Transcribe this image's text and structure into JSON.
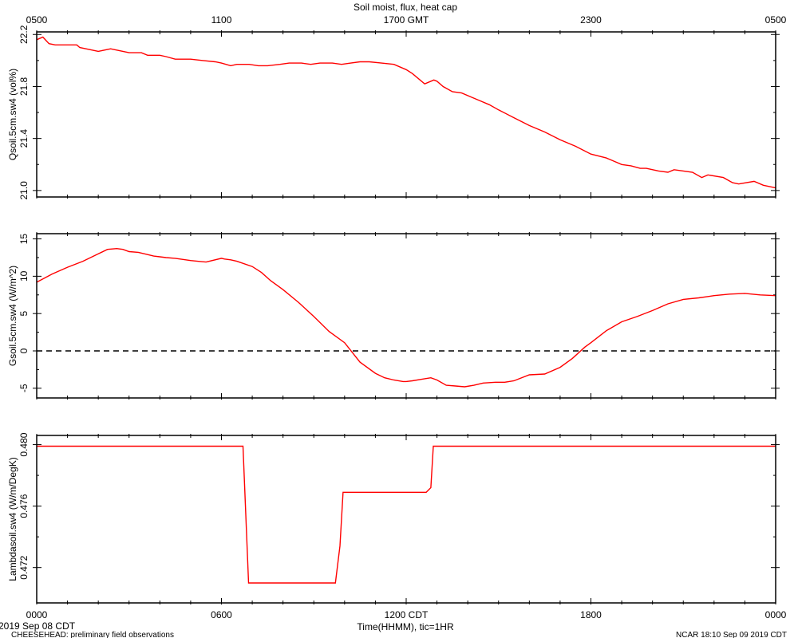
{
  "title": "Soil moist, flux, heat cap",
  "top_axis": {
    "ticks": [
      {
        "hours": 0,
        "label": "0500"
      },
      {
        "hours": 6,
        "label": "1100"
      },
      {
        "hours": 12,
        "label": "1700 GMT"
      },
      {
        "hours": 18,
        "label": "2300"
      },
      {
        "hours": 24,
        "label": "0500"
      }
    ]
  },
  "bottom_axis": {
    "ticks": [
      {
        "hours": 0,
        "label": "0000"
      },
      {
        "hours": 6,
        "label": "0600"
      },
      {
        "hours": 12,
        "label": "1200 CDT"
      },
      {
        "hours": 18,
        "label": "1800"
      },
      {
        "hours": 24,
        "label": "0000"
      }
    ],
    "xlabel": "Time(HHMM), tic=1HR"
  },
  "footer": {
    "date": "2019 Sep 08 CDT",
    "left": "CHEESEHEAD: preliminary field observations",
    "right": "NCAR 18:10 Sep 09 2019 CDT"
  },
  "colors": {
    "series": "#ff0000",
    "frame": "#000000",
    "zero_line": "#000000"
  },
  "chart_data": [
    {
      "type": "line",
      "name": "Qsoil.5cm.sw4",
      "ylabel": "Qsoil.5cm.sw4 (vol%)",
      "xlim": [
        0,
        24
      ],
      "ylim": [
        20.95,
        22.22
      ],
      "yticks": [
        {
          "value": 21.0,
          "label": "21.0"
        },
        {
          "value": 21.4,
          "label": "21.4"
        },
        {
          "value": 21.8,
          "label": "21.8"
        },
        {
          "value": 22.2,
          "label": "22.2"
        }
      ],
      "x": [
        0,
        0.2,
        0.4,
        0.6,
        0.9,
        1.3,
        1.4,
        1.8,
        2.0,
        2.4,
        2.6,
        3.0,
        3.4,
        3.6,
        3.8,
        4.0,
        4.2,
        4.5,
        4.8,
        5.0,
        5.4,
        5.8,
        6.0,
        6.3,
        6.5,
        6.9,
        7.2,
        7.5,
        7.9,
        8.2,
        8.6,
        8.9,
        9.2,
        9.6,
        9.9,
        10.2,
        10.5,
        10.8,
        11.2,
        11.6,
        12.0,
        12.2,
        12.6,
        12.9,
        13.0,
        13.2,
        13.5,
        13.8,
        14.1,
        14.4,
        14.7,
        15.0,
        15.5,
        16.0,
        16.5,
        17.0,
        17.5,
        18.0,
        18.5,
        18.8,
        19.0,
        19.3,
        19.6,
        19.8,
        20.2,
        20.5,
        20.7,
        21.0,
        21.3,
        21.6,
        21.8,
        22.3,
        22.6,
        22.8,
        23.3,
        23.6,
        24.0
      ],
      "y": [
        22.16,
        22.18,
        22.13,
        22.12,
        22.12,
        22.12,
        22.1,
        22.08,
        22.07,
        22.09,
        22.08,
        22.06,
        22.06,
        22.04,
        22.04,
        22.04,
        22.03,
        22.01,
        22.01,
        22.01,
        22.0,
        21.99,
        21.98,
        21.96,
        21.97,
        21.97,
        21.96,
        21.96,
        21.97,
        21.98,
        21.98,
        21.97,
        21.98,
        21.98,
        21.97,
        21.98,
        21.99,
        21.99,
        21.98,
        21.97,
        21.93,
        21.9,
        21.82,
        21.85,
        21.84,
        21.8,
        21.76,
        21.75,
        21.72,
        21.69,
        21.66,
        21.62,
        21.56,
        21.5,
        21.45,
        21.39,
        21.34,
        21.28,
        21.25,
        21.22,
        21.2,
        21.19,
        21.17,
        21.17,
        21.15,
        21.14,
        21.16,
        21.15,
        21.14,
        21.1,
        21.12,
        21.1,
        21.06,
        21.05,
        21.07,
        21.04,
        21.02
      ]
    },
    {
      "type": "line",
      "name": "Gsoil.5cm.sw4",
      "ylabel": "Gsoil.5cm.sw4 (W/m^2)",
      "xlim": [
        0,
        24
      ],
      "ylim": [
        -6.3,
        15.7
      ],
      "yticks": [
        {
          "value": -5,
          "label": "-5"
        },
        {
          "value": 0,
          "label": "0"
        },
        {
          "value": 5,
          "label": "5"
        },
        {
          "value": 10,
          "label": "10"
        },
        {
          "value": 15,
          "label": "15"
        }
      ],
      "reference_line": {
        "y": 0,
        "style": "dashed"
      },
      "x": [
        0,
        0.5,
        1.0,
        1.5,
        2.0,
        2.3,
        2.6,
        2.8,
        3.0,
        3.3,
        3.6,
        3.8,
        4.0,
        4.2,
        4.5,
        5.0,
        5.5,
        6.0,
        6.1,
        6.3,
        6.5,
        7.0,
        7.3,
        7.6,
        8.0,
        8.5,
        9.0,
        9.5,
        10.0,
        10.5,
        11.0,
        11.3,
        11.6,
        11.9,
        12.0,
        12.2,
        12.5,
        12.8,
        13.0,
        13.3,
        13.6,
        13.9,
        14.2,
        14.5,
        14.9,
        15.2,
        15.5,
        16.0,
        16.5,
        17.0,
        17.4,
        17.8,
        18.0,
        18.5,
        19.0,
        19.5,
        20.0,
        20.5,
        21.0,
        21.5,
        22.0,
        22.5,
        23.0,
        23.5,
        24.0
      ],
      "y": [
        9.2,
        10.3,
        11.2,
        12.0,
        13.0,
        13.6,
        13.7,
        13.6,
        13.3,
        13.2,
        12.9,
        12.7,
        12.6,
        12.5,
        12.4,
        12.1,
        11.9,
        12.4,
        12.3,
        12.2,
        12.0,
        11.3,
        10.5,
        9.4,
        8.2,
        6.5,
        4.6,
        2.6,
        1.1,
        -1.5,
        -3.0,
        -3.6,
        -3.9,
        -4.1,
        -4.1,
        -4.0,
        -3.8,
        -3.6,
        -3.9,
        -4.6,
        -4.7,
        -4.8,
        -4.6,
        -4.3,
        -4.2,
        -4.2,
        -4.0,
        -3.2,
        -3.1,
        -2.2,
        -1.0,
        0.5,
        1.1,
        2.7,
        3.9,
        4.6,
        5.4,
        6.3,
        6.9,
        7.1,
        7.4,
        7.6,
        7.7,
        7.5,
        7.4
      ]
    },
    {
      "type": "line",
      "name": "Lambdasoil.sw4",
      "ylabel": "Lambdasoil.sw4 (W/m/DegK)",
      "xlim": [
        0,
        24
      ],
      "ylim": [
        0.4697,
        0.4806
      ],
      "yticks": [
        {
          "value": 0.472,
          "label": "0.472"
        },
        {
          "value": 0.476,
          "label": "0.476"
        },
        {
          "value": 0.48,
          "label": "0.480"
        }
      ],
      "x": [
        0,
        6.7,
        6.88,
        9.7,
        9.85,
        9.95,
        12.65,
        12.8,
        12.88,
        24.0
      ],
      "y": [
        0.4799,
        0.4799,
        0.471,
        0.471,
        0.4734,
        0.4769,
        0.4769,
        0.4772,
        0.4799,
        0.4799
      ]
    }
  ]
}
